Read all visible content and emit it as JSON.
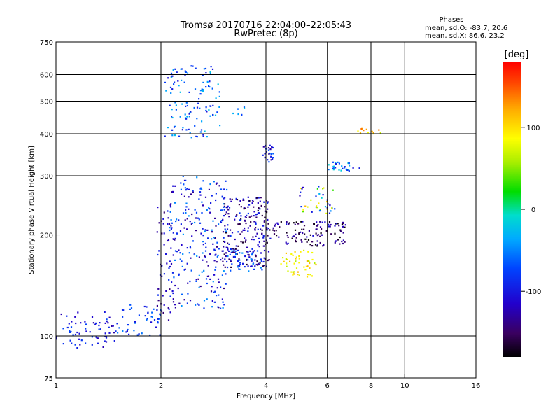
{
  "chart_data": {
    "type": "scatter",
    "title": "Tromsø 20170716 22:04:00–22:05:43",
    "subtitle": "RwPretec (8p)",
    "xlabel": "Frequency [MHz]",
    "ylabel": "Stationary phase Virtual Height [km]",
    "x_scale": "log",
    "y_scale": "log",
    "xlim": [
      1,
      16
    ],
    "ylim": [
      75,
      750
    ],
    "x_ticks": [
      {
        "value": 1,
        "label": "1"
      },
      {
        "value": 2,
        "label": "2"
      },
      {
        "value": 4,
        "label": "4"
      },
      {
        "value": 6,
        "label": "6"
      },
      {
        "value": 8,
        "label": "8"
      },
      {
        "value": 10,
        "label": "10"
      },
      {
        "value": 16,
        "label": "16"
      }
    ],
    "y_ticks": [
      {
        "value": 75,
        "label": "75"
      },
      {
        "value": 100,
        "label": "100"
      },
      {
        "value": 200,
        "label": "200"
      },
      {
        "value": 300,
        "label": "300"
      },
      {
        "value": 400,
        "label": "400"
      },
      {
        "value": 500,
        "label": "500"
      },
      {
        "value": 600,
        "label": "600"
      },
      {
        "value": 750,
        "label": "750"
      }
    ],
    "x_grid": [
      2,
      4,
      6,
      8,
      10
    ],
    "y_grid": [
      100,
      200,
      300,
      400,
      500,
      600
    ],
    "grid": true,
    "phases_box": {
      "heading": "Phases",
      "line_o": "mean, sd,O: -83.7, 20.6",
      "line_x": "mean, sd,X:  86.6, 23.2"
    },
    "colorbar": {
      "label": "[deg]",
      "range": [
        -180,
        180
      ],
      "ticks": [
        {
          "value": 100,
          "label": "100"
        },
        {
          "value": 0,
          "label": "0"
        },
        {
          "value": -100,
          "label": "-100"
        }
      ]
    },
    "point_clusters": [
      {
        "f": [
          1.0,
          1.5
        ],
        "h": [
          92,
          118
        ],
        "phase": [
          -130,
          -70
        ],
        "n": 70
      },
      {
        "f": [
          1.5,
          2.0
        ],
        "h": [
          100,
          125
        ],
        "phase": [
          -110,
          -50
        ],
        "n": 45
      },
      {
        "f": [
          1.95,
          2.15
        ],
        "h": [
          110,
          250
        ],
        "phase": [
          -150,
          -80
        ],
        "n": 45
      },
      {
        "f": [
          2.1,
          3.1
        ],
        "h": [
          120,
          300
        ],
        "phase": [
          -140,
          -40
        ],
        "n": 260
      },
      {
        "f": [
          2.05,
          2.95
        ],
        "h": [
          390,
          640
        ],
        "phase": [
          -110,
          -20
        ],
        "n": 120
      },
      {
        "f": [
          3.0,
          4.1
        ],
        "h": [
          160,
          260
        ],
        "phase": [
          -170,
          -80
        ],
        "n": 220
      },
      {
        "f": [
          3.1,
          3.9
        ],
        "h": [
          155,
          180
        ],
        "phase": [
          -110,
          -40
        ],
        "n": 40
      },
      {
        "f": [
          3.9,
          4.2
        ],
        "h": [
          330,
          370
        ],
        "phase": [
          -140,
          -60
        ],
        "n": 30
      },
      {
        "f": [
          4.0,
          6.8
        ],
        "h": [
          185,
          220
        ],
        "phase": [
          -180,
          -100
        ],
        "n": 120
      },
      {
        "f": [
          4.4,
          5.6
        ],
        "h": [
          150,
          180
        ],
        "phase": [
          60,
          120
        ],
        "n": 50
      },
      {
        "f": [
          5.0,
          6.3
        ],
        "h": [
          230,
          280
        ],
        "phase": [
          -130,
          120
        ],
        "n": 40
      },
      {
        "f": [
          6.0,
          7.6
        ],
        "h": [
          310,
          330
        ],
        "phase": [
          -110,
          -10
        ],
        "n": 30
      },
      {
        "f": [
          7.3,
          8.6
        ],
        "h": [
          395,
          415
        ],
        "phase": [
          60,
          150
        ],
        "n": 12
      },
      {
        "f": [
          3.2,
          3.5
        ],
        "h": [
          450,
          480
        ],
        "phase": [
          -80,
          0
        ],
        "n": 6
      }
    ]
  }
}
